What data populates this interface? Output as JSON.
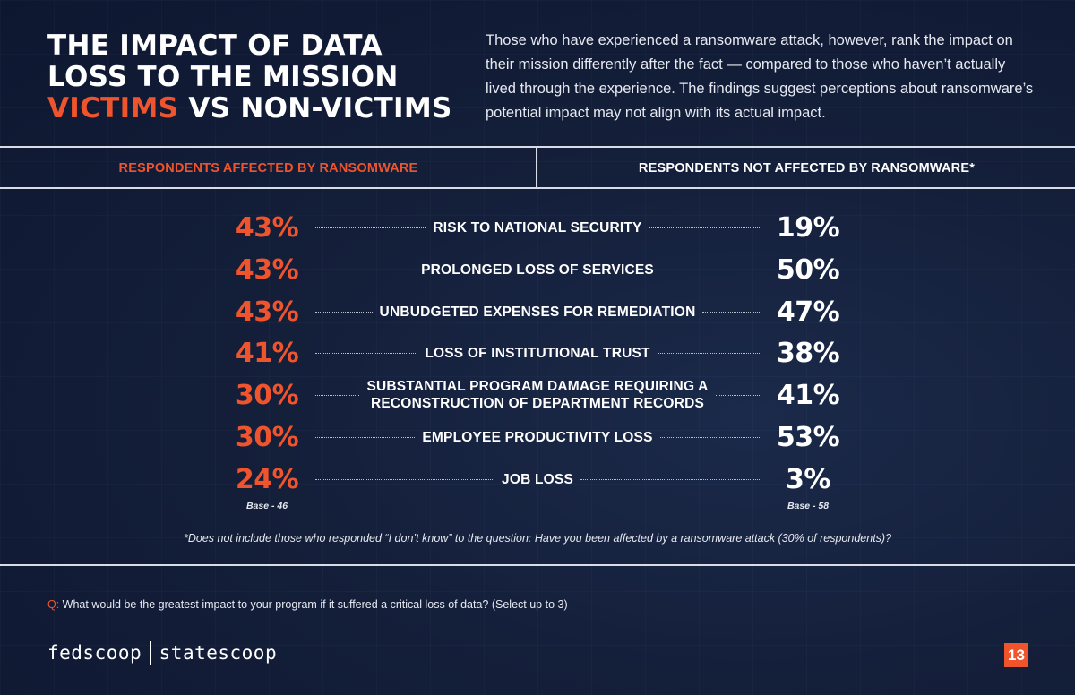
{
  "header": {
    "title_line1": "THE IMPACT OF DATA",
    "title_line2": "LOSS TO THE MISSION",
    "title_accent": "VICTIMS",
    "title_rest": " VS NON-VICTIMS",
    "intro": "Those who have experienced a ransomware attack, however, rank the impact on their mission differently after the fact — compared to those who haven’t actually lived through the experience. The findings suggest perceptions about ransomware’s potential impact may not align with its actual impact."
  },
  "columns": {
    "left": "RESPONDENTS AFFECTED BY RANSOMWARE",
    "right": "RESPONDENTS NOT AFFECTED BY RANSOMWARE*"
  },
  "chart_data": {
    "type": "table",
    "categories": [
      "RISK TO NATIONAL SECURITY",
      "PROLONGED LOSS OF SERVICES",
      "UNBUDGETED EXPENSES FOR REMEDIATION",
      "LOSS OF INSTITUTIONAL TRUST",
      "SUBSTANTIAL PROGRAM DAMAGE REQUIRING A RECONSTRUCTION OF DEPARTMENT RECORDS",
      "EMPLOYEE PRODUCTIVITY LOSS",
      "JOB LOSS"
    ],
    "series": [
      {
        "name": "RESPONDENTS AFFECTED BY RANSOMWARE",
        "values": [
          43,
          43,
          43,
          41,
          30,
          30,
          24
        ],
        "labels": [
          "43%",
          "43%",
          "43%",
          "41%",
          "30%",
          "30%",
          "24%"
        ],
        "base": "Base - 46"
      },
      {
        "name": "RESPONDENTS NOT AFFECTED BY RANSOMWARE*",
        "values": [
          19,
          50,
          47,
          38,
          41,
          53,
          3
        ],
        "labels": [
          "19%",
          "50%",
          "47%",
          "38%",
          "41%",
          "53%",
          "3%"
        ],
        "base": "Base - 58"
      }
    ],
    "label_lines": [
      [
        "RISK TO NATIONAL SECURITY"
      ],
      [
        "PROLONGED LOSS OF SERVICES"
      ],
      [
        "UNBUDGETED EXPENSES FOR REMEDIATION"
      ],
      [
        "LOSS OF INSTITUTIONAL TRUST"
      ],
      [
        "SUBSTANTIAL PROGRAM DAMAGE REQUIRING A",
        "RECONSTRUCTION OF DEPARTMENT RECORDS"
      ],
      [
        "EMPLOYEE PRODUCTIVITY LOSS"
      ],
      [
        "JOB LOSS"
      ]
    ]
  },
  "footnote": "*Does not include those who responded “I don’t know” to the question: Have you been affected by a ransomware attack (30% of respondents)?",
  "question": {
    "prefix": "Q:",
    "text": " What would be the greatest impact to your program if it suffered a critical loss of data? (Select up to 3)"
  },
  "footer": {
    "brand_left": "fedscoop",
    "brand_right": "statescoop",
    "page_number": "13"
  },
  "colors": {
    "accent": "#f0542d",
    "background": "#141f3a",
    "text": "#ffffff"
  }
}
